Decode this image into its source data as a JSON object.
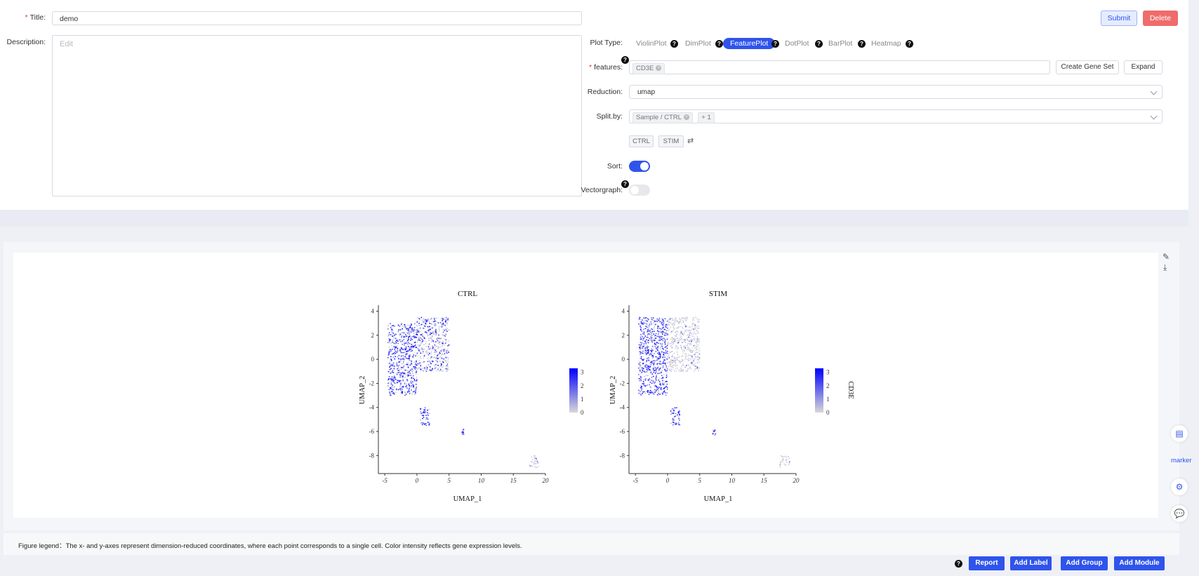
{
  "form": {
    "title_label": "Title:",
    "title_value": "demo",
    "description_label": "Description:",
    "description_placeholder": "Edit",
    "submit_label": "Submit",
    "delete_label": "Delete",
    "plot_type_label": "Plot Type:",
    "plot_types": [
      "ViolinPlot",
      "DimPlot",
      "FeaturePlot",
      "DotPlot",
      "BarPlot",
      "Heatmap"
    ],
    "active_plot_type": "FeaturePlot",
    "features_label": "features:",
    "features": [
      "CD3E"
    ],
    "create_gene_set_label": "Create Gene Set",
    "expand_label": "Expand",
    "reduction_label": "Reduction:",
    "reduction_value": "umap",
    "split_by_label": "Split.by:",
    "split_by_tags": [
      "Sample / CTRL",
      "+ 1"
    ],
    "split_groups": [
      "CTRL",
      "STIM"
    ],
    "sort_label": "Sort:",
    "sort_on": true,
    "vectorgraph_label": "Vectorgraph:",
    "vectorgraph_on": false
  },
  "chart_data": [
    {
      "type": "scatter",
      "title": "CTRL",
      "xlabel": "UMAP_1",
      "ylabel": "UMAP_2",
      "xticks": [
        -5,
        0,
        5,
        10,
        15,
        20
      ],
      "yticks": [
        4,
        2,
        0,
        -2,
        -4,
        -6,
        -8
      ],
      "xlim": [
        -6,
        20
      ],
      "ylim": [
        -9.5,
        4.5
      ],
      "colorbar_ticks": [
        3,
        2,
        1,
        0
      ],
      "colors": {
        "low": "#d8d8d8",
        "high": "#0000ff"
      },
      "clusters": [
        {
          "region": "main-left",
          "x_range": [
            -4.5,
            0
          ],
          "y_range": [
            -3,
            3
          ],
          "expression": "high"
        },
        {
          "region": "main-right",
          "x_range": [
            0,
            5
          ],
          "y_range": [
            -1,
            3.5
          ],
          "expression": "mixed"
        },
        {
          "region": "small-center",
          "x_range": [
            0.5,
            2
          ],
          "y_range": [
            -5.5,
            -4
          ],
          "expression": "high"
        },
        {
          "region": "small-right",
          "x_range": [
            7,
            7.5
          ],
          "y_range": [
            -6.3,
            -5.8
          ],
          "expression": "high"
        },
        {
          "region": "far-right",
          "x_range": [
            17.5,
            19
          ],
          "y_range": [
            -9,
            -8
          ],
          "expression": "low"
        }
      ]
    },
    {
      "type": "scatter",
      "title": "STIM",
      "xlabel": "UMAP_1",
      "ylabel": "UMAP_2",
      "legend_title": "CD3E",
      "xticks": [
        -5,
        0,
        5,
        10,
        15,
        20
      ],
      "yticks": [
        4,
        2,
        0,
        -2,
        -4,
        -6,
        -8
      ],
      "xlim": [
        -6,
        20
      ],
      "ylim": [
        -9.5,
        4.5
      ],
      "colorbar_ticks": [
        3,
        2,
        1,
        0
      ],
      "colors": {
        "low": "#d8d8d8",
        "high": "#0000ff"
      },
      "clusters": [
        {
          "region": "main-left",
          "x_range": [
            -4.5,
            0
          ],
          "y_range": [
            -3,
            3.5
          ],
          "expression": "high"
        },
        {
          "region": "main-right",
          "x_range": [
            0,
            5
          ],
          "y_range": [
            -1,
            3.5
          ],
          "expression": "low"
        },
        {
          "region": "small-center",
          "x_range": [
            0.5,
            2
          ],
          "y_range": [
            -5.5,
            -4
          ],
          "expression": "high"
        },
        {
          "region": "small-right",
          "x_range": [
            7,
            7.5
          ],
          "y_range": [
            -6.3,
            -5.8
          ],
          "expression": "high"
        },
        {
          "region": "far-right",
          "x_range": [
            17.5,
            19
          ],
          "y_range": [
            -9,
            -8
          ],
          "expression": "low"
        }
      ]
    }
  ],
  "figure_legend": "Figure legend：The x- and y-axes represent dimension-reduced coordinates, where each point corresponds to a single cell. Color intensity reflects gene expression levels.",
  "side_tools": {
    "marker_label": "marker"
  },
  "bottom_actions": [
    "Report",
    "Add Label",
    "Add Group",
    "Add Module"
  ],
  "colors": {
    "accent": "#2f54eb",
    "danger": "#ef6c6c"
  }
}
